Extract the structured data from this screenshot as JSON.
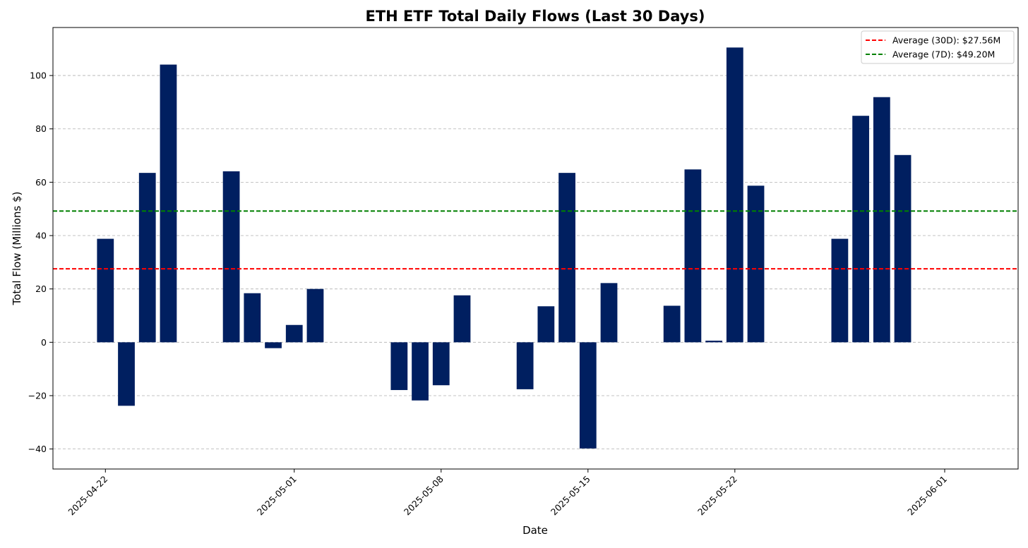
{
  "chart_data": {
    "type": "bar",
    "title": "ETH ETF Total Daily Flows (Last 30 Days)",
    "xlabel": "Date",
    "ylabel": "Total Flow (Millions $)",
    "bar_color": "#001f60",
    "x_range": [
      "2025-04-19T12:00",
      "2025-06-04T12:00"
    ],
    "ylim": [
      -47.5,
      118.0
    ],
    "y_ticks": [
      -40,
      -20,
      0,
      20,
      40,
      60,
      80,
      100
    ],
    "y_tick_labels": [
      "−40",
      "−20",
      "0",
      "20",
      "40",
      "60",
      "80",
      "100"
    ],
    "x_ticks": [
      "2025-04-22",
      "2025-05-01",
      "2025-05-08",
      "2025-05-15",
      "2025-05-22",
      "2025-06-01"
    ],
    "grid": "y",
    "legend_position": "top-right",
    "data": [
      {
        "date": "2025-04-22",
        "value": 38.8
      },
      {
        "date": "2025-04-23",
        "value": -23.8
      },
      {
        "date": "2025-04-24",
        "value": 63.5
      },
      {
        "date": "2025-04-25",
        "value": 104.1
      },
      {
        "date": "2025-04-28",
        "value": 64.1
      },
      {
        "date": "2025-04-29",
        "value": 18.4
      },
      {
        "date": "2025-04-30",
        "value": -2.2
      },
      {
        "date": "2025-05-01",
        "value": 6.5
      },
      {
        "date": "2025-05-02",
        "value": 20.0
      },
      {
        "date": "2025-05-06",
        "value": -17.9
      },
      {
        "date": "2025-05-07",
        "value": -21.8
      },
      {
        "date": "2025-05-08",
        "value": -16.1
      },
      {
        "date": "2025-05-09",
        "value": 17.6
      },
      {
        "date": "2025-05-12",
        "value": -17.6
      },
      {
        "date": "2025-05-13",
        "value": 13.5
      },
      {
        "date": "2025-05-14",
        "value": 63.5
      },
      {
        "date": "2025-05-15",
        "value": -39.8
      },
      {
        "date": "2025-05-16",
        "value": 22.2
      },
      {
        "date": "2025-05-19",
        "value": 13.7
      },
      {
        "date": "2025-05-20",
        "value": 64.8
      },
      {
        "date": "2025-05-21",
        "value": 0.6
      },
      {
        "date": "2025-05-22",
        "value": 110.5
      },
      {
        "date": "2025-05-23",
        "value": 58.7
      },
      {
        "date": "2025-05-27",
        "value": 38.8
      },
      {
        "date": "2025-05-28",
        "value": 84.9
      },
      {
        "date": "2025-05-29",
        "value": 91.9
      },
      {
        "date": "2025-05-30",
        "value": 70.2
      }
    ],
    "reference_lines": [
      {
        "label": "Average (30D): $27.56M",
        "value": 27.56,
        "color": "#ff0000"
      },
      {
        "label": "Average (7D): $49.20M",
        "value": 49.2,
        "color": "#008000"
      }
    ]
  }
}
